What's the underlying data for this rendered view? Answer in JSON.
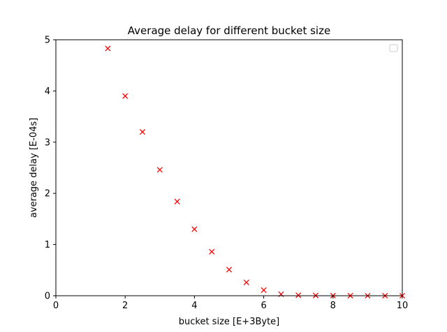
{
  "chart_data": {
    "type": "scatter",
    "title": "Average delay for different bucket size",
    "xlabel": "bucket size [E+3Byte]",
    "ylabel": "average delay [E-04s]",
    "xlim": [
      0,
      10
    ],
    "ylim": [
      0,
      5
    ],
    "xticks": [
      "0",
      "2",
      "4",
      "6",
      "8",
      "10"
    ],
    "yticks": [
      "0",
      "1",
      "2",
      "3",
      "4",
      "5"
    ],
    "grid": false,
    "legend": "top-right, empty",
    "marker": "x",
    "color": "#ff0000",
    "x": [
      1.5,
      2.0,
      2.5,
      3.0,
      3.5,
      4.0,
      4.5,
      5.0,
      5.5,
      6.0,
      6.5,
      7.0,
      7.5,
      8.0,
      8.5,
      9.0,
      9.5,
      10.0
    ],
    "y": [
      4.83,
      3.9,
      3.2,
      2.46,
      1.84,
      1.3,
      0.86,
      0.51,
      0.26,
      0.11,
      0.03,
      0.01,
      0.005,
      0.002,
      0.001,
      0.0,
      0.0,
      0.0
    ]
  }
}
